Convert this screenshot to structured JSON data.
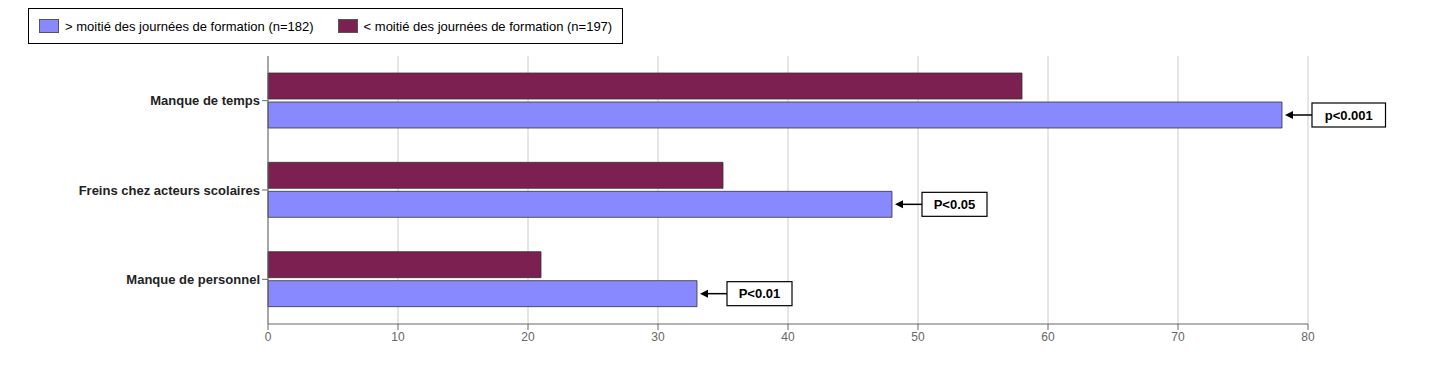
{
  "chart_data": {
    "type": "bar",
    "orientation": "horizontal",
    "categories": [
      "Manque de personnel",
      "Freins chez acteurs scolaires",
      "Manque de temps"
    ],
    "series": [
      {
        "name": "> moitié des journées de formation (n=182)",
        "color": "#8888FF",
        "values": [
          33,
          48,
          78
        ],
        "annotations": [
          {
            "category": "Manque de personnel",
            "text": "P<0.01"
          },
          {
            "category": "Freins chez acteurs scolaires",
            "text": "P<0.05"
          },
          {
            "category": "Manque de temps",
            "text": "p<0.001"
          }
        ]
      },
      {
        "name": "< moitié des journées de formation (n=197)",
        "color": "#7B2050",
        "values": [
          21,
          35,
          58
        ]
      }
    ],
    "xlim": [
      0,
      80
    ],
    "xticks": [
      0,
      10,
      20,
      30,
      40,
      50,
      60,
      70,
      80
    ],
    "grid": true,
    "legend": "top left"
  }
}
